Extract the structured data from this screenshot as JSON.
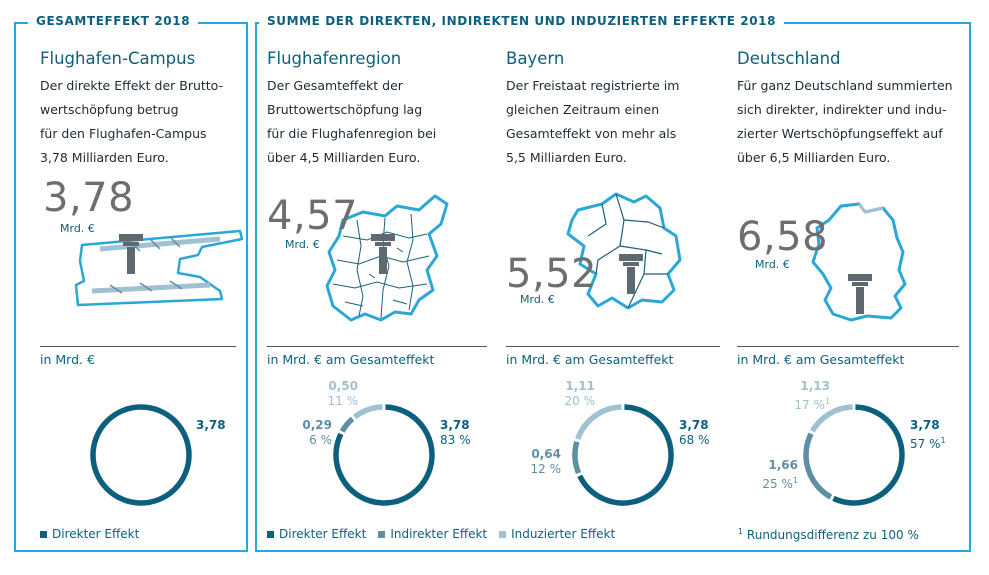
{
  "sections": {
    "left_tag": "GESAMTEFFEKT 2018",
    "right_tag": "SUMME DER DIREKTEN, INDIREKTEN UND INDUZIERTEN EFFEKTE 2018"
  },
  "colors": {
    "frame": "#2aa7d6",
    "direkt": "#0d5f7e",
    "indirekt": "#5f8fa3",
    "induziert": "#9fc1d1",
    "number": "#6e6e6e"
  },
  "columns": [
    {
      "title": "Flughafen-Campus",
      "desc": [
        "Der direkte Effekt der Brutto-",
        "wertschöpfung betrug",
        "für den Flughafen-Campus",
        "3,78 Milliarden Euro."
      ],
      "big_value": "3,78",
      "big_unit": "Mrd. €",
      "sub_label": "in Mrd. €",
      "icon": "airport-campus-map-icon"
    },
    {
      "title": "Flughafenregion",
      "desc": [
        "Der Gesamteffekt der",
        "Bruttowertschöpfung lag",
        "für die Flughafenregion bei",
        "über 4,5 Milliarden Euro."
      ],
      "big_value": "4,57",
      "big_unit": "Mrd. €",
      "sub_label": "in Mrd. € am Gesamteffekt",
      "icon": "airport-region-map-icon"
    },
    {
      "title": "Bayern",
      "desc": [
        "Der Freistaat registrierte im",
        "gleichen Zeitraum einen",
        "Gesamteffekt von mehr als",
        "5,5 Milliarden Euro."
      ],
      "big_value": "5,52",
      "big_unit": "Mrd. €",
      "sub_label": "in Mrd. € am Gesamteffekt",
      "icon": "bavaria-map-icon"
    },
    {
      "title": "Deutschland",
      "desc": [
        "Für ganz Deutschland summierten",
        "sich direkter, indirekter und indu-",
        "zierter Wertschöpfungseffekt auf",
        "über 6,5 Milliarden Euro."
      ],
      "big_value": "6,58",
      "big_unit": "Mrd. €",
      "sub_label": "in Mrd. € am Gesamteffekt",
      "icon": "germany-map-icon"
    }
  ],
  "chart_data": [
    {
      "type": "pie",
      "title": "Flughafen-Campus",
      "categories": [
        "Direkter Effekt"
      ],
      "values": [
        3.78
      ],
      "value_labels": [
        "3,78"
      ],
      "percent_labels": [
        ""
      ]
    },
    {
      "type": "pie",
      "title": "Flughafenregion",
      "categories": [
        "Direkter Effekt",
        "Indirekter Effekt",
        "Induzierter Effekt"
      ],
      "values": [
        3.78,
        0.29,
        0.5
      ],
      "value_labels": [
        "3,78",
        "0,29",
        "0,50"
      ],
      "percent_labels": [
        "83 %",
        "6 %",
        "11 %"
      ]
    },
    {
      "type": "pie",
      "title": "Bayern",
      "categories": [
        "Direkter Effekt",
        "Indirekter Effekt",
        "Induzierter Effekt"
      ],
      "values": [
        3.78,
        0.64,
        1.11
      ],
      "value_labels": [
        "3,78",
        "0,64",
        "1,11"
      ],
      "percent_labels": [
        "68 %",
        "12 %",
        "20 %"
      ]
    },
    {
      "type": "pie",
      "title": "Deutschland",
      "categories": [
        "Direkter Effekt",
        "Indirekter Effekt",
        "Induzierter Effekt"
      ],
      "values": [
        3.78,
        1.66,
        1.13
      ],
      "value_labels": [
        "3,78",
        "1,66",
        "1,13"
      ],
      "percent_labels": [
        "57 %",
        "25 %",
        "17 %"
      ],
      "footnote_marker": "1"
    }
  ],
  "legend_left": [
    "Direkter Effekt"
  ],
  "legend_right": [
    "Direkter Effekt",
    "Indirekter Effekt",
    "Induzierter Effekt"
  ],
  "footnote": {
    "marker": "1",
    "text": "Rundungsdifferenz zu 100 %"
  }
}
